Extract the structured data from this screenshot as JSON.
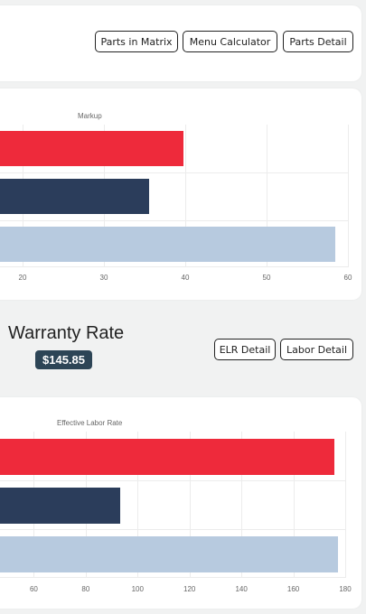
{
  "top_card": {
    "buttons": [
      {
        "label": "Parts in Matrix"
      },
      {
        "label": "Menu Calculator"
      },
      {
        "label": "Parts Detail"
      }
    ]
  },
  "markup_chart": {
    "title": "Markup",
    "ticks": [
      "20",
      "30",
      "40",
      "50",
      "60"
    ]
  },
  "warranty": {
    "title": "Warranty Rate",
    "value": "$145.85",
    "buttons": [
      {
        "label": "ELR Detail"
      },
      {
        "label": "Labor Detail"
      }
    ]
  },
  "elr_chart": {
    "title": "Effective Labor Rate",
    "ticks": [
      "60",
      "80",
      "100",
      "120",
      "140",
      "160",
      "180"
    ]
  },
  "colors": {
    "red": "#ee2a3b",
    "navy": "#2b3d5b",
    "light_blue": "#b7cadf"
  },
  "chart_data": [
    {
      "type": "bar",
      "orientation": "horizontal",
      "title": "Markup",
      "series": [
        {
          "values": [
            39.8,
            35.6,
            58.4
          ]
        }
      ],
      "bar_colors": [
        "#ee2a3b",
        "#2b3d5b",
        "#b7cadf"
      ],
      "xlim": [
        15,
        60
      ],
      "x_ticks": [
        20,
        30,
        40,
        50,
        60
      ],
      "grid": true
    },
    {
      "type": "bar",
      "orientation": "horizontal",
      "title": "Effective Labor Rate",
      "series": [
        {
          "values": [
            175.7,
            93.2,
            177.3
          ]
        }
      ],
      "bar_colors": [
        "#ee2a3b",
        "#2b3d5b",
        "#b7cadf"
      ],
      "xlim": [
        40,
        180
      ],
      "x_ticks": [
        60,
        80,
        100,
        120,
        140,
        160,
        180
      ],
      "grid": true
    }
  ]
}
